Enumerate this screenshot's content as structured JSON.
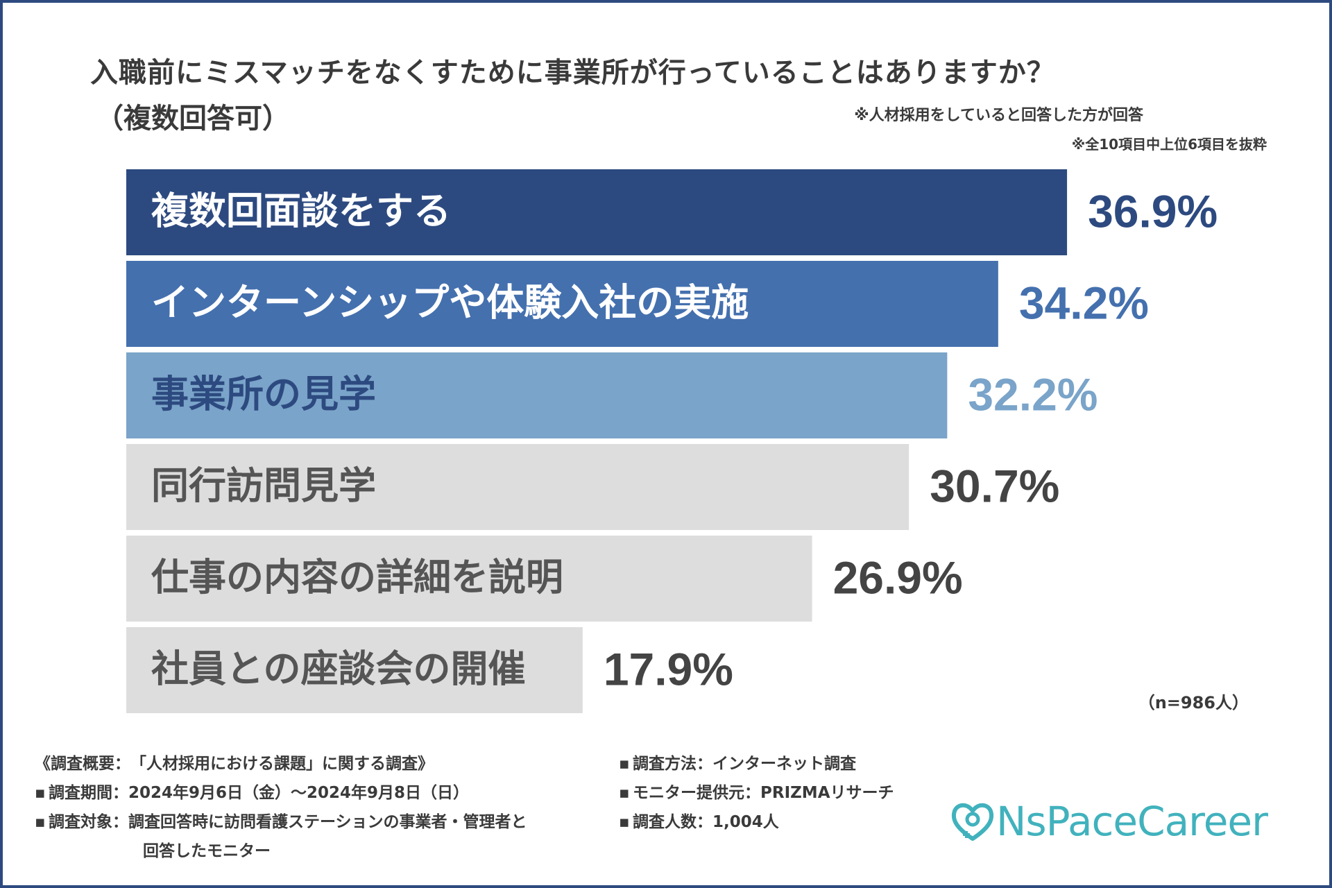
{
  "title": "入職前にミスマッチをなくすために事業所が行っていることはありますか？",
  "subtitle": "（複数回答可）",
  "notes": {
    "respondents": "※人材採用をしていると回答した方が回答",
    "selection": "※全10項目中上位6項目を抜粋"
  },
  "chart_data": {
    "type": "bar",
    "orientation": "horizontal",
    "title": "入職前にミスマッチをなくすために事業所が行っていることはありますか？（複数回答可）",
    "categories": [
      "複数回面談をする",
      "インターンシップや体験入社の実施",
      "事業所の見学",
      "同行訪問見学",
      "仕事の内容の詳細を説明",
      "社員との座談会の開催"
    ],
    "values": [
      36.9,
      34.2,
      32.2,
      30.7,
      26.9,
      17.9
    ],
    "labels": [
      "36.9%",
      "34.2%",
      "32.2%",
      "30.7%",
      "26.9%",
      "17.9%"
    ],
    "unit": "%",
    "xlim": [
      0,
      40
    ],
    "bar_colors": [
      "#2d4a80",
      "#4470ae",
      "#7aa4c9",
      "#dddddd",
      "#dddddd",
      "#dddddd"
    ],
    "label_colors": [
      "#2d4a80",
      "#4470ae",
      "#7aa4c9",
      "#444444",
      "#444444",
      "#444444"
    ],
    "category_text_colors": [
      "#ffffff",
      "#ffffff",
      "#2d4a80",
      "#555555",
      "#555555",
      "#555555"
    ],
    "xlabel": "",
    "ylabel": "",
    "grid": false,
    "legend": "none"
  },
  "sample_size": "（n=986人）",
  "survey": {
    "left": [
      {
        "bullet": "《",
        "label": "調査概要",
        "value": "「人材採用における課題」に関する調査》"
      },
      {
        "bullet": "▪",
        "label": "調査期間",
        "value": "2024年9月6日（金）〜2024年9月8日（日）"
      },
      {
        "bullet": "▪",
        "label": "調査対象",
        "value": "調査回答時に訪問看護ステーションの事業者・管理者と"
      },
      {
        "bullet": "",
        "label": "",
        "value": "回答したモニター"
      }
    ],
    "right": [
      {
        "bullet": "▪",
        "label": "調査方法",
        "value": "インターネット調査"
      },
      {
        "bullet": "▪",
        "label": "モニター提供元",
        "value": "PRIZMAリサーチ"
      },
      {
        "bullet": "▪",
        "label": "調査人数",
        "value": "1,004人"
      }
    ],
    "separator": "："
  },
  "logo": {
    "text": "NsPaceCareer",
    "color": "#41b2bd"
  },
  "colors": {
    "frame": "#2d4a80",
    "text": "#3a3a3a"
  }
}
